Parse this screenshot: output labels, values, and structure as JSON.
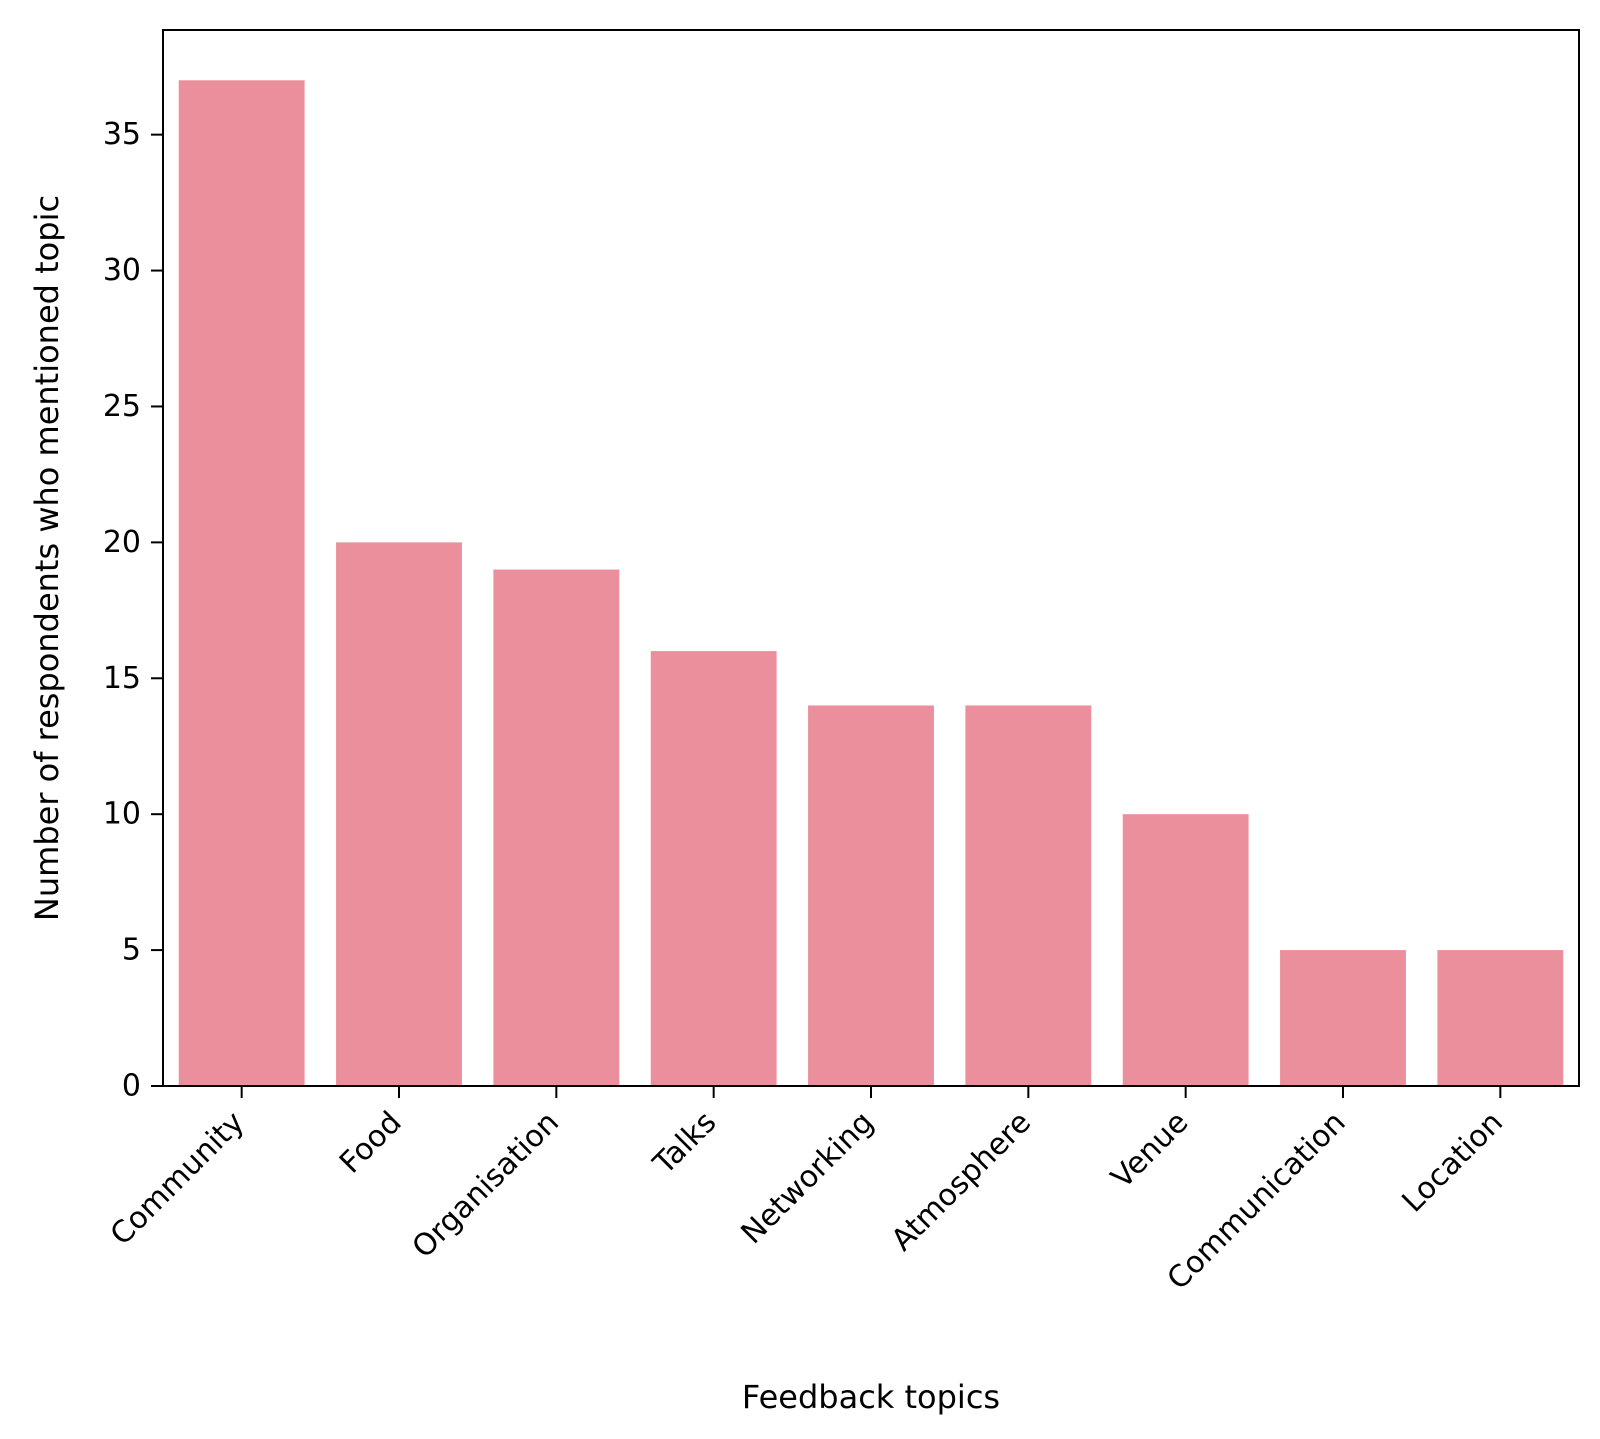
{
  "chart_data": {
    "type": "bar",
    "categories": [
      "Community",
      "Food",
      "Organisation",
      "Talks",
      "Networking",
      "Atmosphere",
      "Venue",
      "Communication",
      "Location"
    ],
    "values": [
      37,
      20,
      19,
      16,
      14,
      14,
      10,
      5,
      5
    ],
    "xlabel": "Feedback topics",
    "ylabel": "Number of respondents who mentioned topic",
    "ylim": [
      0,
      38.85
    ],
    "yticks": [
      0,
      5,
      10,
      15,
      20,
      25,
      30,
      35
    ],
    "bar_color": "#eb8f9c",
    "grid": false,
    "legend": false
  }
}
